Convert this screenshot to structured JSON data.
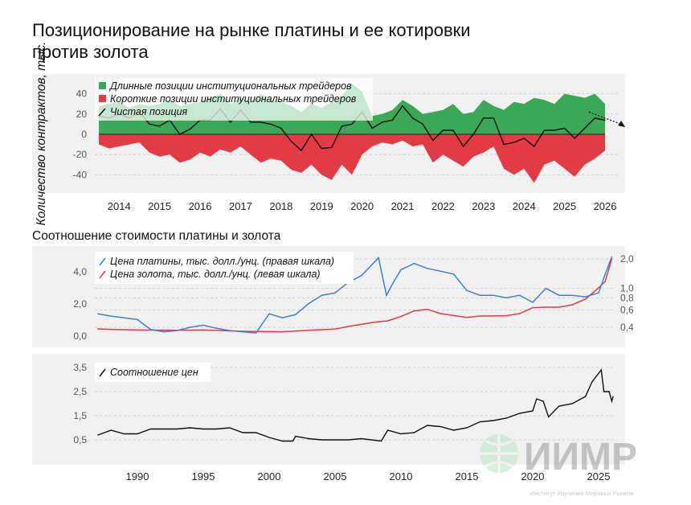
{
  "title_lines": [
    "Позиционирование на рынке платины и ее котировки",
    "против золота"
  ],
  "subtitle": "Соотношение стоимости платины и золота",
  "colors": {
    "long": "#3ba858",
    "short": "#e23b45",
    "net": "#111111",
    "platinum": "#3e7fcc",
    "gold": "#e03a4a",
    "ratio": "#111111",
    "panel_bg": "#f1f1f1"
  },
  "watermark": {
    "logo": "ИИМР",
    "caption": "Институт Изучения Мировых Рынков"
  },
  "chart_data": [
    {
      "type": "area",
      "title": "",
      "ylabel": "Количество контрактов, тыс.",
      "ylim": [
        -50,
        55
      ],
      "yticks": [
        "40",
        "20",
        "0",
        "-20",
        "-40"
      ],
      "ytick_values": [
        40,
        20,
        0,
        -20,
        -40
      ],
      "xticks": [
        "2014",
        "2015",
        "2016",
        "2017",
        "2018",
        "2019",
        "2020",
        "2021",
        "2022",
        "2023",
        "2024",
        "2025",
        "2026"
      ],
      "xtick_values": [
        2014,
        2015,
        2016,
        2017,
        2018,
        2019,
        2020,
        2021,
        2022,
        2023,
        2024,
        2025,
        2026
      ],
      "grid": true,
      "legend": "top-left",
      "x": [
        2013.5,
        2013.75,
        2014,
        2014.25,
        2014.5,
        2014.75,
        2015,
        2015.25,
        2015.5,
        2015.75,
        2016,
        2016.25,
        2016.5,
        2016.75,
        2017,
        2017.25,
        2017.5,
        2017.75,
        2018,
        2018.25,
        2018.5,
        2018.75,
        2019,
        2019.25,
        2019.5,
        2019.75,
        2020,
        2020.25,
        2020.5,
        2020.75,
        2021,
        2021.25,
        2021.5,
        2021.75,
        2022,
        2022.25,
        2022.5,
        2022.75,
        2023,
        2023.25,
        2023.5,
        2023.75,
        2024,
        2024.25,
        2024.5,
        2024.75,
        2025,
        2025.25,
        2025.5,
        2025.75,
        2026
      ],
      "series": [
        {
          "name": "Длинные позиции институциональных трейдеров",
          "values": [
            28,
            30,
            32,
            26,
            30,
            28,
            30,
            34,
            28,
            30,
            32,
            36,
            40,
            30,
            36,
            32,
            40,
            34,
            32,
            28,
            22,
            30,
            26,
            32,
            38,
            50,
            42,
            18,
            20,
            24,
            34,
            28,
            20,
            22,
            24,
            30,
            20,
            22,
            34,
            28,
            24,
            32,
            30,
            36,
            34,
            30,
            40,
            38,
            36,
            40,
            30
          ]
        },
        {
          "name": "Короткие позиции институциональных трейдеров",
          "values": [
            -10,
            -14,
            -12,
            -10,
            -8,
            -18,
            -22,
            -20,
            -28,
            -25,
            -18,
            -22,
            -15,
            -18,
            -12,
            -20,
            -28,
            -24,
            -26,
            -35,
            -38,
            -30,
            -40,
            -45,
            -30,
            -40,
            -20,
            -12,
            -8,
            -10,
            -6,
            -12,
            -10,
            -28,
            -20,
            -26,
            -32,
            -22,
            -18,
            -12,
            -34,
            -40,
            -34,
            -48,
            -30,
            -26,
            -34,
            -42,
            -30,
            -24,
            -16
          ]
        },
        {
          "name": "Чистая позиция",
          "values": [
            18,
            16,
            20,
            16,
            22,
            10,
            8,
            14,
            0,
            5,
            14,
            14,
            25,
            12,
            24,
            12,
            12,
            10,
            6,
            -7,
            -16,
            0,
            -14,
            -13,
            8,
            10,
            22,
            6,
            12,
            14,
            28,
            16,
            10,
            -6,
            4,
            4,
            -12,
            0,
            16,
            16,
            -10,
            -8,
            -4,
            -12,
            4,
            4,
            6,
            -4,
            6,
            16,
            14
          ]
        }
      ],
      "annotation": "dashed-arrow-down"
    },
    {
      "type": "line",
      "title": "",
      "ylim_left": [
        -0.3,
        5.0
      ],
      "yticks_left": [
        "4,0",
        "2,0",
        "0,0"
      ],
      "ytick_values_left": [
        4,
        2,
        0
      ],
      "yticks_right": [
        "2,0",
        "1,0",
        "0,8",
        "0,6",
        "0,4"
      ],
      "ytick_values_right": [
        2.0,
        1.0,
        0.8,
        0.6,
        0.4
      ],
      "right_scale": "log",
      "grid": true,
      "legend": "top-left",
      "series": [
        {
          "name": "Цена платины, тыс. долл./унц. (правая шкала)",
          "axis": "right",
          "x": [
            1987,
            1988,
            1989,
            1990,
            1991,
            1992,
            1993,
            1994,
            1995,
            1996,
            1997,
            1998,
            1999,
            2000,
            2001,
            2002,
            2003,
            2004,
            2005,
            2006,
            2007,
            2008.3,
            2008.9,
            2009.5,
            2010,
            2011,
            2012,
            2013,
            2014,
            2015,
            2016,
            2017,
            2018,
            2019,
            2020,
            2021,
            2022,
            2023,
            2024,
            2025,
            2025.5,
            2026
          ],
          "values": [
            0.55,
            0.52,
            0.5,
            0.48,
            0.38,
            0.36,
            0.37,
            0.4,
            0.42,
            0.39,
            0.37,
            0.36,
            0.35,
            0.55,
            0.5,
            0.54,
            0.7,
            0.85,
            0.9,
            1.15,
            1.35,
            2.05,
            0.85,
            1.2,
            1.55,
            1.8,
            1.6,
            1.5,
            1.4,
            0.95,
            0.85,
            0.85,
            0.8,
            0.85,
            0.72,
            1.0,
            0.85,
            0.85,
            0.82,
            0.9,
            1.4,
            2.1
          ]
        },
        {
          "name": "Цена золота, тыс. долл./унц. (левая шкала)",
          "axis": "left",
          "x": [
            1987,
            1988,
            1990,
            1993,
            1995,
            1998,
            2000,
            2001,
            2003,
            2005,
            2006,
            2008,
            2009,
            2010,
            2011,
            2012,
            2013,
            2015,
            2016,
            2018,
            2019,
            2020,
            2021,
            2022,
            2023,
            2024,
            2025,
            2025.5,
            2026
          ],
          "values": [
            0.45,
            0.42,
            0.38,
            0.36,
            0.38,
            0.3,
            0.28,
            0.27,
            0.36,
            0.44,
            0.6,
            0.87,
            0.95,
            1.22,
            1.57,
            1.67,
            1.4,
            1.16,
            1.25,
            1.27,
            1.4,
            1.77,
            1.8,
            1.8,
            1.95,
            2.3,
            3.0,
            3.4,
            4.8
          ]
        }
      ]
    },
    {
      "type": "line",
      "title": "",
      "ylim": [
        -0.3,
        4.0
      ],
      "yticks": [
        "3,5",
        "2,5",
        "1,5",
        "0,5"
      ],
      "ytick_values": [
        3.5,
        2.5,
        1.5,
        0.5
      ],
      "xticks": [
        "1990",
        "1995",
        "2000",
        "2005",
        "2010",
        "2015",
        "2020",
        "2025"
      ],
      "xtick_values": [
        1990,
        1995,
        2000,
        2005,
        2010,
        2015,
        2020,
        2025
      ],
      "grid": true,
      "legend": "top-left",
      "series": [
        {
          "name": "Соотношение цен",
          "x": [
            1987,
            1988,
            1989,
            1990,
            1991,
            1992,
            1993,
            1994,
            1995,
            1996,
            1997,
            1998,
            1999,
            2000,
            2001,
            2001.8,
            2002,
            2003,
            2004,
            2005,
            2006,
            2007,
            2008.5,
            2009,
            2010,
            2011,
            2012,
            2013,
            2014,
            2015,
            2016,
            2017,
            2018,
            2019,
            2020,
            2020.3,
            2020.8,
            2021.2,
            2022,
            2023,
            2024,
            2024.5,
            2025.2,
            2025.4,
            2025.8,
            2026,
            2026.1
          ],
          "values": [
            0.7,
            0.9,
            0.75,
            0.75,
            0.95,
            0.95,
            0.95,
            1.0,
            0.95,
            0.95,
            1.0,
            0.8,
            0.8,
            0.6,
            0.45,
            0.45,
            0.65,
            0.55,
            0.5,
            0.5,
            0.5,
            0.55,
            0.45,
            0.9,
            0.75,
            0.8,
            1.1,
            1.05,
            0.9,
            1.0,
            1.25,
            1.3,
            1.4,
            1.6,
            1.7,
            2.2,
            2.1,
            1.45,
            1.9,
            2.0,
            2.3,
            2.9,
            3.4,
            2.5,
            2.5,
            2.1,
            2.3
          ]
        }
      ]
    }
  ]
}
